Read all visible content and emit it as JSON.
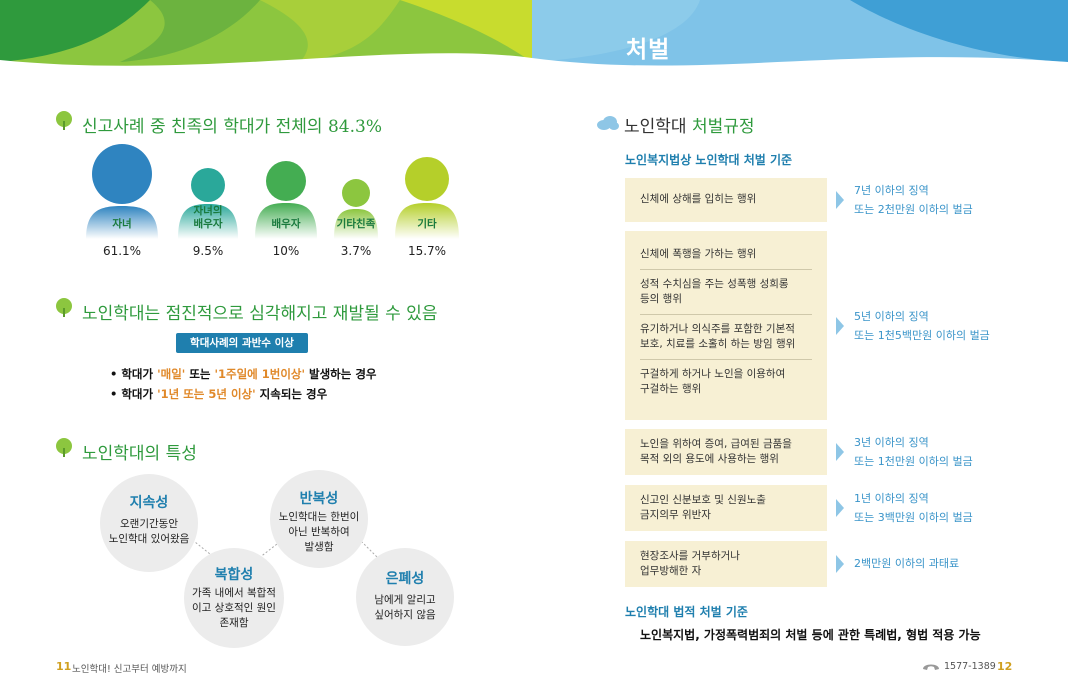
{
  "header": {
    "title": "처벌"
  },
  "left": {
    "section1": {
      "title": "신고사례 중 친족의 학대가 전체의 84.3%",
      "people": [
        {
          "label": "자녀",
          "percent": "61.1%",
          "color": "#2f84c0"
        },
        {
          "label": "자녀의\n배우자",
          "percent": "9.5%",
          "color": "#2aa89a"
        },
        {
          "label": "배우자",
          "percent": "10%",
          "color": "#44ad52"
        },
        {
          "label": "기타친족",
          "percent": "3.7%",
          "color": "#8cc63f"
        },
        {
          "label": "기타",
          "percent": "15.7%",
          "color": "#b5cf2a"
        }
      ]
    },
    "section2": {
      "title": "노인학대는 점진적으로 심각해지고 재발될 수 있음",
      "badge": "학대사례의 과반수 이상",
      "bullets": [
        {
          "pre": "• 학대가 ",
          "q1": "'매일'",
          "mid": " 또는 ",
          "q2": "'1주일에 1번이상'",
          "post": " 발생하는 경우"
        },
        {
          "pre": "• 학대가 ",
          "q1": "'1년 또는 5년 이상'",
          "post": " 지속되는 경우"
        }
      ]
    },
    "section3": {
      "title": "노인학대의 특성",
      "traits": [
        {
          "title": "지속성",
          "text": "오랜기간동안\n노인학대 있어왔음"
        },
        {
          "title": "반복성",
          "text": "노인학대는 한번이\n아닌 반복하여\n발생함"
        },
        {
          "title": "복합성",
          "text": "가족 내에서 복합적\n이고 상호적인 원인\n존재함"
        },
        {
          "title": "은폐성",
          "text": "남에게 알리고\n싶어하지 않음"
        }
      ]
    },
    "footer": {
      "page": "11",
      "text": "노인학대! 신고부터 예방까지"
    }
  },
  "right": {
    "title_plain": "노인학대 ",
    "title_accent": "처벌규정",
    "heading1": "노인복지법상 노인학대 처벌 기준",
    "rows": [
      {
        "items": [
          "신체에 상해를 입히는 행위"
        ],
        "penalty": [
          "7년 이하의 징역",
          "또는 2천만원 이하의 벌금"
        ]
      },
      {
        "items": [
          "신체에 폭행을 가하는 행위",
          "성적 수치심을 주는 성폭행 성희롱\n등의 행위",
          "유기하거나 의식주를 포함한 기본적\n보호, 치료를 소홀히 하는 방임 행위",
          "구걸하게 하거나 노인을 이용하여\n구걸하는 행위"
        ],
        "penalty": [
          "5년 이하의 징역",
          "또는 1천5백만원 이하의 벌금"
        ]
      },
      {
        "items": [
          "노인을 위하여 증여, 급여된 금품을\n목적 외의 용도에 사용하는 행위"
        ],
        "penalty": [
          "3년 이하의 징역",
          "또는 1천만원 이하의 벌금"
        ]
      },
      {
        "items": [
          "신고인 신분보호 및 신원노출\n금지의무 위반자"
        ],
        "penalty": [
          "1년 이하의 징역",
          "또는 3백만원 이하의 벌금"
        ]
      },
      {
        "items": [
          "현장조사를 거부하거나\n업무방해한 자"
        ],
        "penalty": [
          "2백만원 이하의 과태료"
        ]
      }
    ],
    "heading2": "노인학대 법적 처벌 기준",
    "law_text": "노인복지법, 가정폭력범죄의 처벌 등에 관한 특례법, 형법 적용 가능",
    "footer": {
      "phone": "1577-1389",
      "page": "12"
    }
  }
}
